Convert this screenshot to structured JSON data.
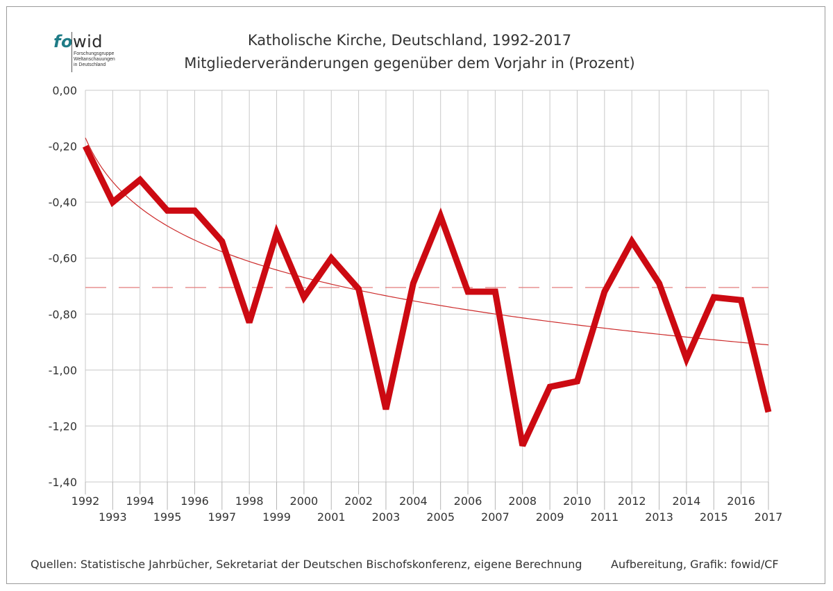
{
  "logo": {
    "brand_a": "fo",
    "brand_b": "wid",
    "subtitle_lines": [
      "Forschungsgruppe",
      "Weltanschauungen",
      "in Deutschland"
    ]
  },
  "footer": {
    "source": "Quellen: Statistische Jahrbücher, Sekretariat der Deutschen Bischofskonferenz, eigene Berechnung",
    "credit": "Aufbereitung, Grafik: fowid/CF"
  },
  "chart_data": {
    "type": "line",
    "title": "Katholische Kirche, Deutschland, 1992-2017",
    "subtitle": "Mitgliederveränderungen gegenüber dem Vorjahr in (Prozent)",
    "xlabel": "",
    "ylabel": "",
    "ylim": [
      -1.4,
      0
    ],
    "y_ticks": [
      0,
      -0.2,
      -0.4,
      -0.6,
      -0.8,
      -1.0,
      -1.2,
      -1.4
    ],
    "y_tick_labels": [
      "0,00",
      "-0,20",
      "-0,40",
      "-0,60",
      "-0,80",
      "-1,00",
      "-1,20",
      "-1,40"
    ],
    "x": [
      1992,
      1993,
      1994,
      1995,
      1996,
      1997,
      1998,
      1999,
      2000,
      2001,
      2002,
      2003,
      2004,
      2005,
      2006,
      2007,
      2008,
      2009,
      2010,
      2011,
      2012,
      2013,
      2014,
      2015,
      2016,
      2017
    ],
    "x_tick_labels": [
      "1992",
      "1993",
      "1994",
      "1995",
      "1996",
      "1997",
      "1998",
      "1999",
      "2000",
      "2001",
      "2002",
      "2003",
      "2004",
      "2005",
      "2006",
      "2007",
      "2008",
      "2009",
      "2010",
      "2011",
      "2012",
      "2013",
      "2014",
      "2015",
      "2016",
      "2017"
    ],
    "grid": true,
    "legend": "none",
    "series": [
      {
        "values": [
          -0.2,
          -0.4,
          -0.32,
          -0.43,
          -0.43,
          -0.54,
          -0.83,
          -0.51,
          -0.74,
          -0.6,
          -0.71,
          -1.14,
          -0.69,
          -0.45,
          -0.72,
          -0.72,
          -1.27,
          -1.06,
          -1.04,
          -0.72,
          -0.54,
          -0.69,
          -0.96,
          -0.74,
          -0.75,
          -1.15
        ],
        "color": "#cc0a12",
        "style": "thick-line"
      }
    ],
    "average": {
      "value": -0.705,
      "color": "#e27b7b",
      "style": "dashed"
    },
    "trend": {
      "type": "logarithmic",
      "start": -0.17,
      "end": -0.91,
      "color": "#cc2a2a",
      "style": "thin-line"
    }
  }
}
